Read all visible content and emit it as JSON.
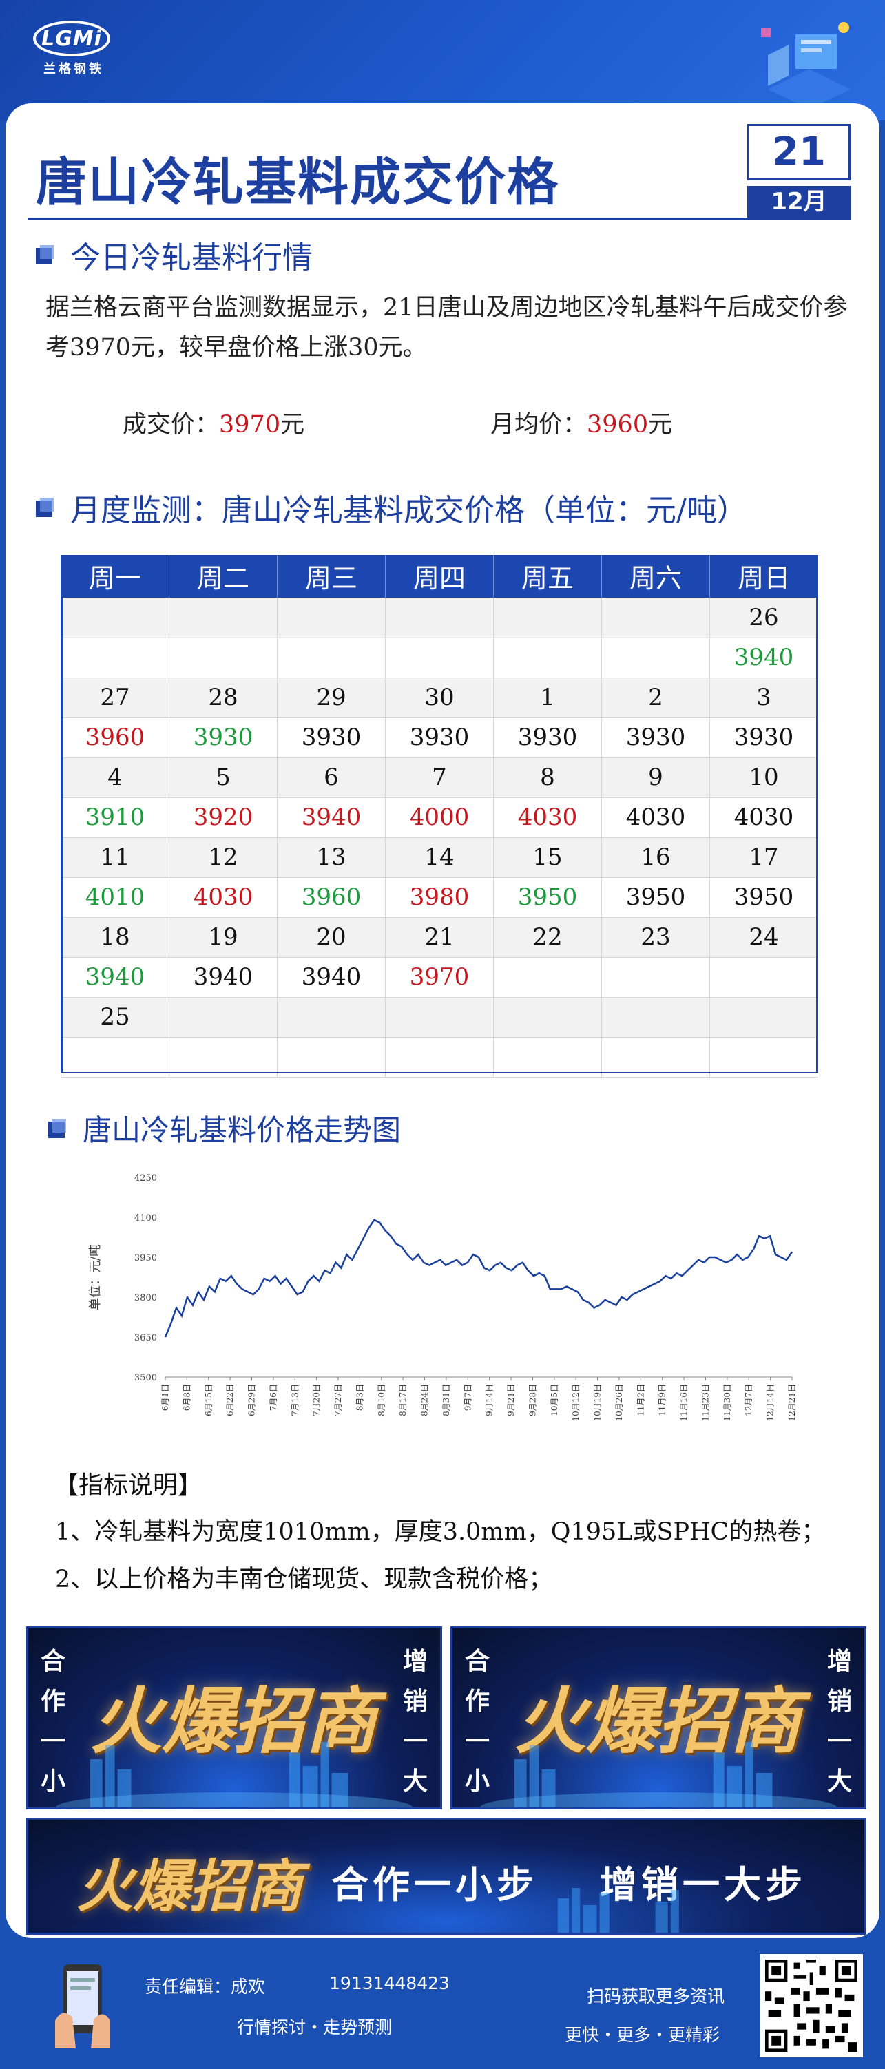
{
  "header": {
    "logo_text": "LGMi",
    "logo_cn": "兰格钢铁",
    "title": "唐山冷轧基料成交价格",
    "date_day": "21",
    "date_month": "12月"
  },
  "today": {
    "heading": "今日冷轧基料行情",
    "paragraph": "据兰格云商平台监测数据显示，21日唐山及周边地区冷轧基料午后成交价参考3970元，较早盘价格上涨30元。",
    "deal_label": "成交价：",
    "deal_value": "3970",
    "deal_unit": "元",
    "avg_label": "月均价：",
    "avg_value": "3960",
    "avg_unit": "元"
  },
  "monthly": {
    "heading": "月度监测：唐山冷轧基料成交价格（单位：元/吨）",
    "weekdays": [
      "周一",
      "周二",
      "周三",
      "周四",
      "周五",
      "周六",
      "周日"
    ],
    "rows": [
      {
        "type": "d",
        "cells": [
          "",
          "",
          "",
          "",
          "",
          "",
          "26"
        ]
      },
      {
        "type": "p",
        "cells": [
          {
            "v": ""
          },
          {
            "v": ""
          },
          {
            "v": ""
          },
          {
            "v": ""
          },
          {
            "v": ""
          },
          {
            "v": ""
          },
          {
            "v": "3940",
            "c": "down"
          }
        ]
      },
      {
        "type": "d",
        "cells": [
          "27",
          "28",
          "29",
          "30",
          "1",
          "2",
          "3"
        ]
      },
      {
        "type": "p",
        "cells": [
          {
            "v": "3960",
            "c": "up"
          },
          {
            "v": "3930",
            "c": "down"
          },
          {
            "v": "3930"
          },
          {
            "v": "3930"
          },
          {
            "v": "3930"
          },
          {
            "v": "3930"
          },
          {
            "v": "3930"
          }
        ]
      },
      {
        "type": "d",
        "cells": [
          "4",
          "5",
          "6",
          "7",
          "8",
          "9",
          "10"
        ]
      },
      {
        "type": "p",
        "cells": [
          {
            "v": "3910",
            "c": "down"
          },
          {
            "v": "3920",
            "c": "up"
          },
          {
            "v": "3940",
            "c": "up"
          },
          {
            "v": "4000",
            "c": "up"
          },
          {
            "v": "4030",
            "c": "up"
          },
          {
            "v": "4030"
          },
          {
            "v": "4030"
          }
        ]
      },
      {
        "type": "d",
        "cells": [
          "11",
          "12",
          "13",
          "14",
          "15",
          "16",
          "17"
        ]
      },
      {
        "type": "p",
        "cells": [
          {
            "v": "4010",
            "c": "down"
          },
          {
            "v": "4030",
            "c": "up"
          },
          {
            "v": "3960",
            "c": "down"
          },
          {
            "v": "3980",
            "c": "up"
          },
          {
            "v": "3950",
            "c": "down"
          },
          {
            "v": "3950"
          },
          {
            "v": "3950"
          }
        ]
      },
      {
        "type": "d",
        "cells": [
          "18",
          "19",
          "20",
          "21",
          "22",
          "23",
          "24"
        ]
      },
      {
        "type": "p",
        "cells": [
          {
            "v": "3940",
            "c": "down"
          },
          {
            "v": "3940"
          },
          {
            "v": "3940"
          },
          {
            "v": "3970",
            "c": "up"
          },
          {
            "v": ""
          },
          {
            "v": ""
          },
          {
            "v": ""
          }
        ]
      },
      {
        "type": "d",
        "cells": [
          "25",
          "",
          "",
          "",
          "",
          "",
          ""
        ]
      },
      {
        "type": "p",
        "cells": [
          {
            "v": ""
          },
          {
            "v": ""
          },
          {
            "v": ""
          },
          {
            "v": ""
          },
          {
            "v": ""
          },
          {
            "v": ""
          },
          {
            "v": ""
          }
        ]
      }
    ]
  },
  "trend": {
    "heading": "唐山冷轧基料价格走势图"
  },
  "chart_data": {
    "type": "line",
    "title": "",
    "xlabel": "",
    "ylabel": "单位：元/吨",
    "ylim": [
      3500,
      4250
    ],
    "yticks": [
      3500,
      3650,
      3800,
      3950,
      4100,
      4250
    ],
    "xticks": [
      "6月1日",
      "6月8日",
      "6月15日",
      "6月22日",
      "6月29日",
      "7月6日",
      "7月13日",
      "7月20日",
      "7月27日",
      "8月3日",
      "8月10日",
      "8月17日",
      "8月24日",
      "8月31日",
      "9月7日",
      "9月14日",
      "9月21日",
      "9月28日",
      "10月5日",
      "10月12日",
      "10月19日",
      "10月26日",
      "11月2日",
      "11月9日",
      "11月16日",
      "11月23日",
      "11月30日",
      "12月7日",
      "12月14日",
      "12月21日"
    ],
    "values": [
      3650,
      3700,
      3760,
      3730,
      3800,
      3770,
      3820,
      3790,
      3840,
      3820,
      3870,
      3860,
      3880,
      3850,
      3830,
      3820,
      3810,
      3830,
      3870,
      3860,
      3880,
      3850,
      3870,
      3840,
      3810,
      3820,
      3860,
      3880,
      3860,
      3900,
      3890,
      3930,
      3910,
      3960,
      3940,
      3980,
      4020,
      4060,
      4090,
      4080,
      4050,
      4030,
      4000,
      3990,
      3960,
      3940,
      3960,
      3930,
      3920,
      3930,
      3940,
      3920,
      3930,
      3940,
      3920,
      3930,
      3960,
      3950,
      3910,
      3900,
      3920,
      3930,
      3910,
      3900,
      3920,
      3930,
      3900,
      3880,
      3890,
      3880,
      3830,
      3830,
      3830,
      3840,
      3830,
      3820,
      3790,
      3780,
      3760,
      3770,
      3790,
      3780,
      3770,
      3800,
      3790,
      3810,
      3820,
      3830,
      3840,
      3850,
      3860,
      3880,
      3870,
      3890,
      3880,
      3900,
      3920,
      3940,
      3930,
      3950,
      3950,
      3940,
      3930,
      3940,
      3960,
      3940,
      3950,
      3980,
      4030,
      4020,
      4030,
      3960,
      3950,
      3940,
      3970
    ]
  },
  "notes": {
    "title": "【指标说明】",
    "items": [
      "1、冷轧基料为宽度1010mm，厚度3.0mm，Q195L或SPHC的热卷；",
      "2、以上价格为丰南仓储现货、现款含税价格；"
    ]
  },
  "banners": {
    "big": "火爆招商",
    "left_side": "合作一小步",
    "right_side": "增销一大步",
    "slogan1": "合作一小步",
    "slogan2": "增销一大步"
  },
  "footer": {
    "editor": "责任编辑：成欢",
    "phone": "19131448423",
    "tagline": "行情探讨・走势预测",
    "qr_line1": "扫码获取更多资讯",
    "qr_line2": "更快・更多・更精彩"
  },
  "colors": {
    "brand_blue": "#1c3fa0",
    "rise_red": "#c8161d",
    "fall_green": "#1b9b3b"
  }
}
